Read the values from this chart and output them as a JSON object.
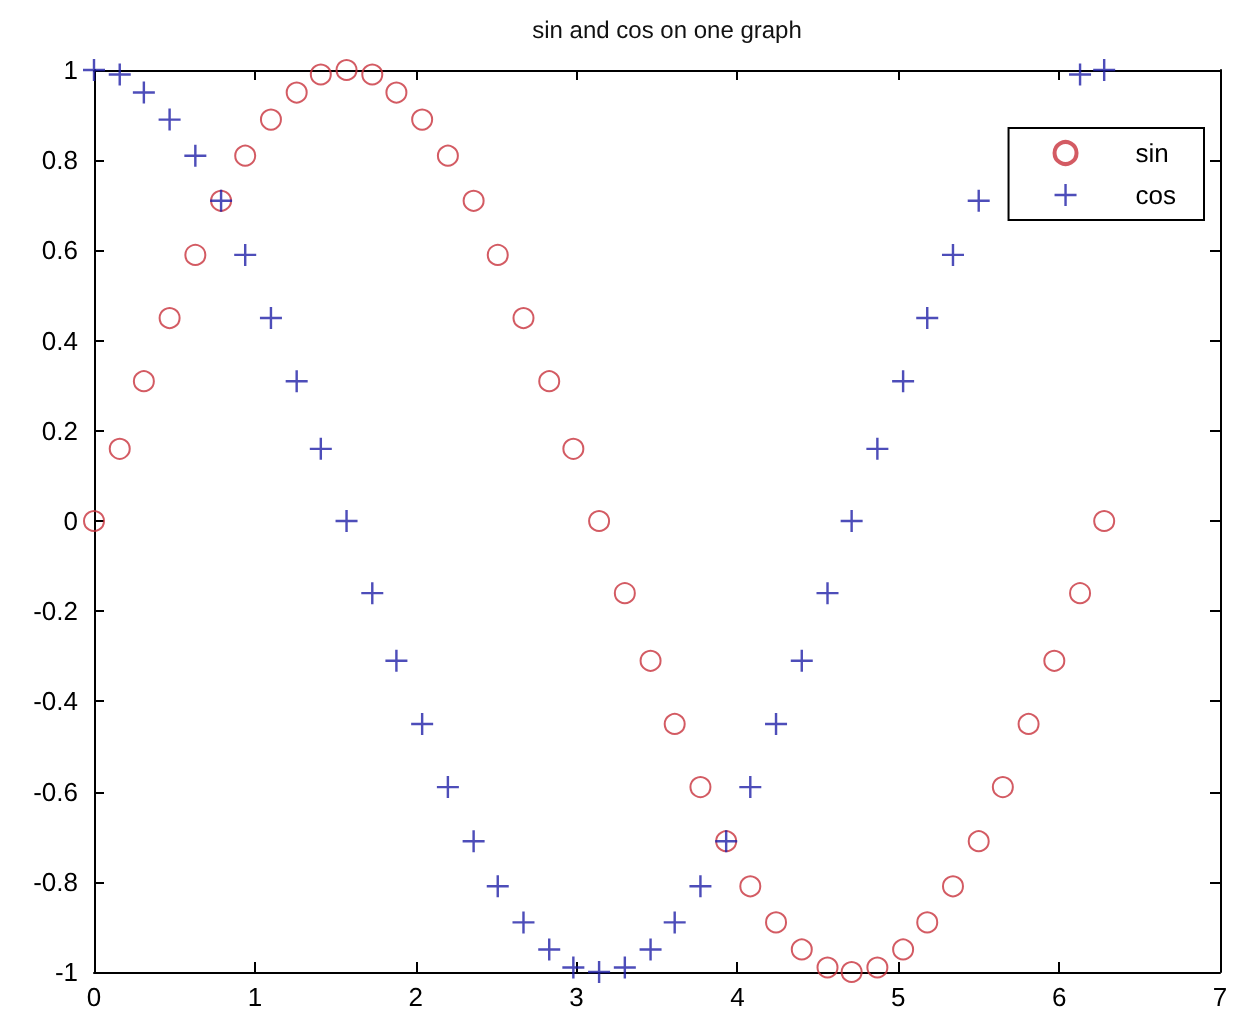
{
  "chart_data": {
    "type": "scatter",
    "title": "sin and cos on one graph",
    "x": [
      0,
      0.16,
      0.31,
      0.47,
      0.63,
      0.79,
      0.94,
      1.1,
      1.26,
      1.41,
      1.57,
      1.73,
      1.88,
      2.04,
      2.2,
      2.36,
      2.51,
      2.67,
      2.83,
      2.98,
      3.14,
      3.3,
      3.46,
      3.61,
      3.77,
      3.93,
      4.08,
      4.24,
      4.4,
      4.56,
      4.71,
      4.87,
      5.03,
      5.18,
      5.34,
      5.5,
      5.65,
      5.81,
      5.97,
      6.13,
      6.28
    ],
    "series": [
      {
        "name": "sin",
        "color": "#c8323c",
        "marker": "circle",
        "values": [
          0,
          0.16,
          0.31,
          0.45,
          0.59,
          0.71,
          0.81,
          0.89,
          0.95,
          0.99,
          1,
          0.99,
          0.95,
          0.89,
          0.81,
          0.71,
          0.59,
          0.45,
          0.31,
          0.16,
          0,
          -0.16,
          -0.31,
          -0.45,
          -0.59,
          -0.71,
          -0.81,
          -0.89,
          -0.95,
          -0.99,
          -1,
          -0.99,
          -0.95,
          -0.89,
          -0.81,
          -0.71,
          -0.59,
          -0.45,
          -0.31,
          -0.16,
          0
        ]
      },
      {
        "name": "cos",
        "color": "#2020a8",
        "marker": "cross",
        "values": [
          1,
          0.99,
          0.95,
          0.89,
          0.81,
          0.71,
          0.59,
          0.45,
          0.31,
          0.16,
          0,
          -0.16,
          -0.31,
          -0.45,
          -0.59,
          -0.71,
          -0.81,
          -0.89,
          -0.95,
          -0.99,
          -1,
          -0.99,
          -0.95,
          -0.89,
          -0.81,
          -0.71,
          -0.59,
          -0.45,
          -0.31,
          -0.16,
          0,
          0.16,
          0.31,
          0.45,
          0.59,
          0.71,
          null,
          null,
          null,
          0.99,
          1
        ]
      }
    ],
    "xlim": [
      0,
      7
    ],
    "xticks": [
      0,
      1,
      2,
      3,
      4,
      5,
      6,
      7
    ],
    "ylim": [
      -1,
      1
    ],
    "yticks": [
      -1,
      -0.8,
      -0.6,
      -0.4,
      -0.2,
      0,
      0.2,
      0.4,
      0.6,
      0.8,
      1
    ],
    "legend": "top right"
  }
}
